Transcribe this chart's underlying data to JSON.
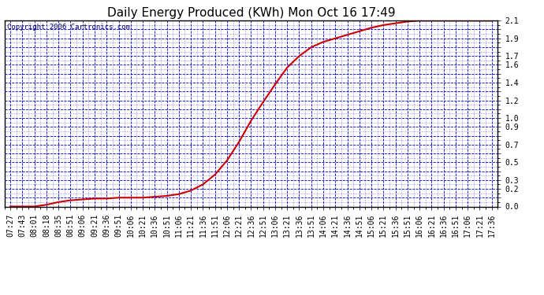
{
  "title": "Daily Energy Produced (KWh) Mon Oct 16 17:49",
  "copyright": "Copyright 2006 Cartronics.com",
  "line_color": "#cc0000",
  "background_color": "#ffffff",
  "plot_bg_color": "#ffffff",
  "grid_color": "#0000cc",
  "border_color": "#000000",
  "title_color": "#000000",
  "x_times": [
    "07:27",
    "07:43",
    "08:01",
    "08:18",
    "08:35",
    "08:51",
    "09:06",
    "09:21",
    "09:36",
    "09:51",
    "10:06",
    "10:21",
    "10:36",
    "10:51",
    "11:06",
    "11:21",
    "11:36",
    "11:51",
    "12:06",
    "12:21",
    "12:36",
    "12:51",
    "13:06",
    "13:21",
    "13:36",
    "13:51",
    "14:06",
    "14:21",
    "14:36",
    "14:51",
    "15:06",
    "15:21",
    "15:36",
    "15:51",
    "16:06",
    "16:21",
    "16:36",
    "16:51",
    "17:06",
    "17:21",
    "17:36"
  ],
  "y_values": [
    0.0,
    0.0,
    0.0,
    0.02,
    0.05,
    0.07,
    0.08,
    0.09,
    0.09,
    0.1,
    0.1,
    0.1,
    0.11,
    0.12,
    0.14,
    0.18,
    0.25,
    0.36,
    0.52,
    0.73,
    0.97,
    1.18,
    1.38,
    1.57,
    1.7,
    1.8,
    1.86,
    1.9,
    1.94,
    1.98,
    2.02,
    2.05,
    2.07,
    2.09,
    2.1,
    2.1,
    2.1,
    2.1,
    2.1,
    2.1,
    2.1
  ],
  "ytick_positions": [
    0.0,
    0.1,
    0.2,
    0.3,
    0.4,
    0.5,
    0.6,
    0.7,
    0.8,
    0.9,
    1.0,
    1.1,
    1.2,
    1.3,
    1.4,
    1.5,
    1.6,
    1.7,
    1.8,
    1.9,
    2.0,
    2.1
  ],
  "ytick_labels": [
    "0.0",
    "",
    "0.2",
    "0.3",
    "",
    "0.5",
    "",
    "0.7",
    "",
    "0.9",
    "1.0",
    "",
    "1.2",
    "",
    "1.4",
    "",
    "1.6",
    "1.7",
    "",
    "1.9",
    "",
    "2.1"
  ],
  "ylim": [
    0.0,
    2.1
  ],
  "title_fontsize": 11,
  "copyright_fontsize": 6.5,
  "tick_fontsize": 7,
  "line_width": 1.5
}
